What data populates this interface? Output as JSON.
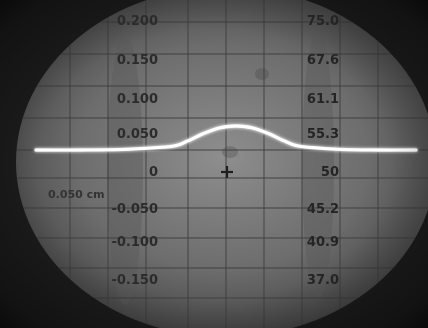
{
  "chart_data": {
    "type": "line",
    "left_scale_labels": [
      "0.200",
      "0.150",
      "0.100",
      "0.050",
      "0",
      "-0.050",
      "-0.100",
      "-0.150"
    ],
    "right_scale_labels": [
      "75.0",
      "67.6",
      "61.1",
      "55.3",
      "50",
      "45.2",
      "40.9",
      "37.0"
    ],
    "center_side_label": "0.050 cm",
    "trace": {
      "baseline": 0,
      "x": [
        -1.0,
        -0.8,
        -0.6,
        -0.4,
        -0.3,
        -0.2,
        -0.1,
        0.0,
        0.1,
        0.2,
        0.3,
        0.4,
        0.6,
        0.8,
        1.0
      ],
      "y": [
        0.0,
        0.0,
        0.002,
        0.01,
        0.025,
        0.045,
        0.06,
        0.065,
        0.06,
        0.045,
        0.025,
        0.01,
        0.002,
        0.0,
        0.0
      ]
    },
    "grid": true,
    "center_marker": "+"
  }
}
